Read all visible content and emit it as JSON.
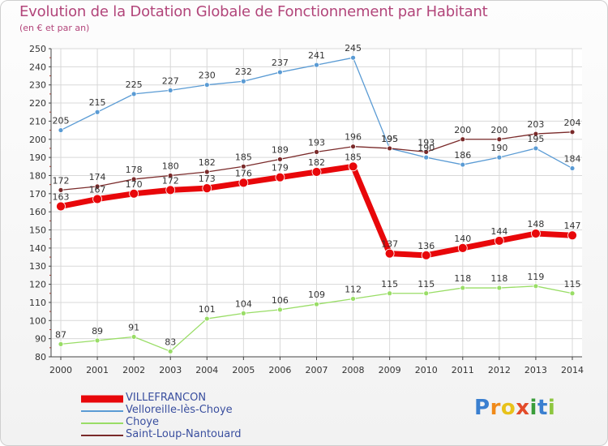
{
  "chart_data": {
    "type": "line",
    "title": "Evolution de la Dotation Globale de Fonctionnement par Habitant",
    "subtitle": "(en € et par an)",
    "xlabel": "",
    "ylabel": "",
    "x": [
      "2000",
      "2001",
      "2002",
      "2003",
      "2004",
      "2005",
      "2006",
      "2007",
      "2008",
      "2009",
      "2010",
      "2011",
      "2012",
      "2013",
      "2014"
    ],
    "ylim": [
      80,
      250
    ],
    "yticks": [
      "80",
      "90",
      "100",
      "110",
      "120",
      "130",
      "140",
      "150",
      "160",
      "170",
      "180",
      "190",
      "200",
      "210",
      "220",
      "230",
      "240",
      "250"
    ],
    "grid": true,
    "legend_position": "bottom-left",
    "series": [
      {
        "name": "VILLEFRANCON",
        "color": "#e8070a",
        "values": [
          163,
          167,
          170,
          172,
          173,
          176,
          179,
          182,
          185,
          137,
          136,
          140,
          144,
          148,
          147
        ]
      },
      {
        "name": "Velloreille-lès-Choye",
        "color": "#5a9bd4",
        "values": [
          205,
          215,
          225,
          227,
          230,
          232,
          237,
          241,
          245,
          195,
          190,
          186,
          190,
          195,
          184
        ]
      },
      {
        "name": "Choye",
        "color": "#99dd66",
        "values": [
          87,
          89,
          91,
          83,
          101,
          104,
          106,
          109,
          112,
          115,
          115,
          118,
          118,
          119,
          115
        ]
      },
      {
        "name": "Saint-Loup-Nantouard",
        "color": "#7a2a2a",
        "values": [
          172,
          174,
          178,
          180,
          182,
          185,
          189,
          193,
          196,
          195,
          193,
          200,
          200,
          203,
          204
        ]
      }
    ]
  },
  "brand": {
    "letters": [
      "P",
      "r",
      "o",
      "x",
      "i",
      "t",
      "i"
    ],
    "colors": [
      "#3a7fd0",
      "#f08a1a",
      "#e8c21a",
      "#e34b2a",
      "#3a9d3a",
      "#3a7fd0",
      "#8dc63f"
    ]
  }
}
